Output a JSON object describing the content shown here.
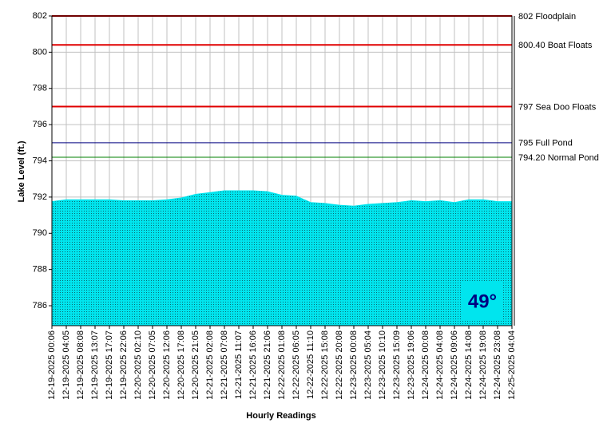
{
  "chart_data": {
    "type": "area",
    "y_label": "Lake Level (ft.)",
    "x_label": "Hourly Readings",
    "categories": [
      "12-19-2025 00:06",
      "12-19-2025 04:05",
      "12-19-2025 08:08",
      "12-19-2025 13:07",
      "12-19-2025 17:07",
      "12-19-2025 22:06",
      "12-20-2025 02:10",
      "12-20-2025 07:05",
      "12-20-2025 12:06",
      "12-20-2025 17:08",
      "12-20-2025 21:05",
      "12-21-2025 02:08",
      "12-21-2025 07:08",
      "12-21-2025 11:07",
      "12-21-2025 16:06",
      "12-21-2025 21:06",
      "12-22-2025 01:08",
      "12-22-2025 06:05",
      "12-22-2025 11:10",
      "12-22-2025 15:08",
      "12-22-2025 20:08",
      "12-23-2025 00:08",
      "12-23-2025 05:04",
      "12-23-2025 10:10",
      "12-23-2025 15:09",
      "12-23-2025 19:06",
      "12-24-2025 00:08",
      "12-24-2025 04:08",
      "12-24-2025 09:06",
      "12-24-2025 14:08",
      "12-24-2025 19:08",
      "12-24-2025 23:08",
      "12-25-2025 04:04"
    ],
    "values": [
      791.75,
      791.85,
      791.85,
      791.85,
      791.85,
      791.8,
      791.8,
      791.8,
      791.85,
      791.95,
      792.15,
      792.25,
      792.35,
      792.35,
      792.35,
      792.3,
      792.1,
      792.05,
      791.7,
      791.65,
      791.55,
      791.5,
      791.6,
      791.65,
      791.7,
      791.8,
      791.75,
      791.8,
      791.7,
      791.85,
      791.85,
      791.75,
      791.75
    ],
    "color": "#00e5ee",
    "ylim": [
      784.9,
      802
    ],
    "yticks": [
      786,
      788,
      790,
      792,
      794,
      796,
      798,
      800,
      802
    ],
    "grid": true,
    "reference_lines": [
      {
        "value": 802,
        "label": "802 Floodplain",
        "color": "#e00000"
      },
      {
        "value": 800.4,
        "label": "800.40 Boat Floats",
        "color": "#e00000"
      },
      {
        "value": 797,
        "label": "797 Sea Doo Floats",
        "color": "#e00000"
      },
      {
        "value": 795,
        "label": "795 Full Pond",
        "color": "#000080"
      },
      {
        "value": 794.2,
        "label": "794.20 Normal Pond",
        "color": "#008000"
      }
    ],
    "badge": "49°"
  }
}
